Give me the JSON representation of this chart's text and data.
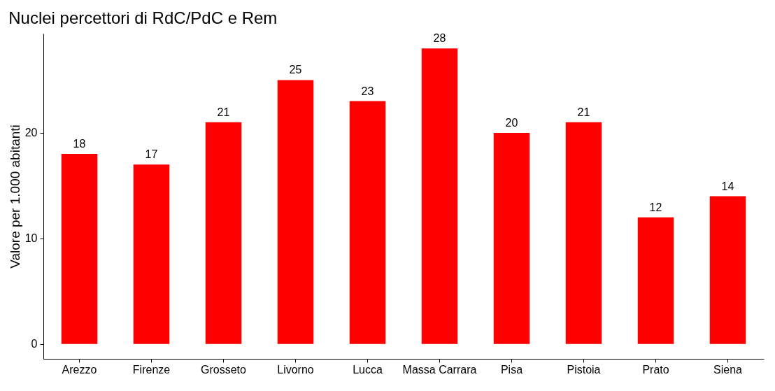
{
  "chart_data": {
    "type": "bar",
    "title": "Nuclei percettori di RdC/PdC e Rem",
    "ylabel": "Valore per 1.000 abitanti",
    "categories": [
      "Arezzo",
      "Firenze",
      "Grosseto",
      "Livorno",
      "Lucca",
      "Massa Carrara",
      "Pisa",
      "Pistoia",
      "Prato",
      "Siena"
    ],
    "values": [
      18,
      17,
      21,
      25,
      23,
      28,
      20,
      21,
      12,
      14
    ],
    "color": "#ff0000",
    "ylim": [
      -1.4,
      29.4
    ],
    "yticks": [
      0,
      10,
      20
    ],
    "grid": false,
    "data_labels": true
  }
}
